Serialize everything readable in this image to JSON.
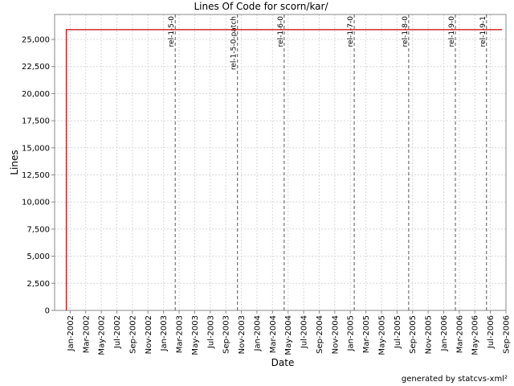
{
  "chart_data": {
    "type": "line",
    "title": "Lines Of Code for scorn/kar/",
    "x_label": "Date",
    "y_label": "Lines",
    "footer": "generated by statcvs-xml²",
    "x": [
      "2001-12",
      "2001-12",
      "2006-08"
    ],
    "values": [
      0,
      25900,
      25900
    ],
    "color": "#cc0000",
    "xlim": [
      "2001-11",
      "2006-09"
    ],
    "xticks": [
      {
        "value": "2002-01",
        "label": "Jan-2002"
      },
      {
        "value": "2002-03",
        "label": "Mar-2002"
      },
      {
        "value": "2002-05",
        "label": "May-2002"
      },
      {
        "value": "2002-07",
        "label": "Jul-2002"
      },
      {
        "value": "2002-09",
        "label": "Sep-2002"
      },
      {
        "value": "2002-11",
        "label": "Nov-2002"
      },
      {
        "value": "2003-01",
        "label": "Jan-2003"
      },
      {
        "value": "2003-03",
        "label": "Mar-2003"
      },
      {
        "value": "2003-05",
        "label": "May-2003"
      },
      {
        "value": "2003-07",
        "label": "Jul-2003"
      },
      {
        "value": "2003-09",
        "label": "Sep-2003"
      },
      {
        "value": "2003-11",
        "label": "Nov-2003"
      },
      {
        "value": "2004-01",
        "label": "Jan-2004"
      },
      {
        "value": "2004-03",
        "label": "Mar-2004"
      },
      {
        "value": "2004-05",
        "label": "May-2004"
      },
      {
        "value": "2004-07",
        "label": "Jul-2004"
      },
      {
        "value": "2004-09",
        "label": "Sep-2004"
      },
      {
        "value": "2004-11",
        "label": "Nov-2004"
      },
      {
        "value": "2005-01",
        "label": "Jan-2005"
      },
      {
        "value": "2005-03",
        "label": "Mar-2005"
      },
      {
        "value": "2005-05",
        "label": "May-2005"
      },
      {
        "value": "2005-07",
        "label": "Jul-2005"
      },
      {
        "value": "2005-09",
        "label": "Sep-2005"
      },
      {
        "value": "2005-11",
        "label": "Nov-2005"
      },
      {
        "value": "2006-01",
        "label": "Jan-2006"
      },
      {
        "value": "2006-03",
        "label": "Mar-2006"
      },
      {
        "value": "2006-05",
        "label": "May-2006"
      },
      {
        "value": "2006-07",
        "label": "Jul-2006"
      },
      {
        "value": "2006-09",
        "label": "Sep-2006"
      }
    ],
    "ylim": [
      0,
      27300
    ],
    "yticks": [
      0,
      {
        "value": 2500,
        "label": "2,500"
      },
      {
        "value": 5000,
        "label": "5,000"
      },
      {
        "value": 7500,
        "label": "7,500"
      },
      {
        "value": 10000,
        "label": "10,000"
      },
      {
        "value": 12500,
        "label": "12,500"
      },
      {
        "value": 15000,
        "label": "15,000"
      },
      {
        "value": 17500,
        "label": "17,500"
      },
      {
        "value": 20000,
        "label": "20,000"
      },
      {
        "value": 22500,
        "label": "22,500"
      },
      {
        "value": 25000,
        "label": "25,000"
      }
    ],
    "grid": true,
    "annotations": [
      {
        "label": "rel-1-5-0",
        "x": "2003-02"
      },
      {
        "label": "rel-1-5-0-patch",
        "x": "2003-10"
      },
      {
        "label": "rel-1-6-0",
        "x": "2004-04"
      },
      {
        "label": "rel-1-7-0",
        "x": "2005-01"
      },
      {
        "label": "rel-1-8-0",
        "x": "2005-08"
      },
      {
        "label": "rel-1-9-0",
        "x": "2006-02"
      },
      {
        "label": "rel-1-9-1",
        "x": "2006-06"
      }
    ]
  }
}
